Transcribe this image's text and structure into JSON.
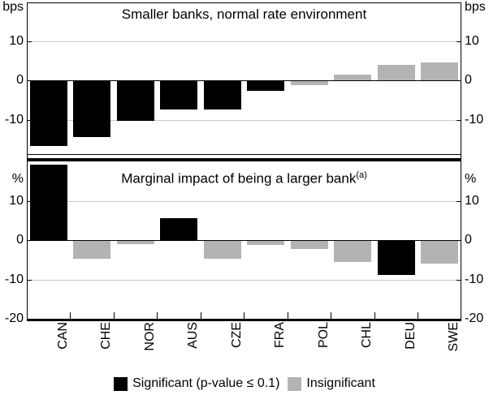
{
  "legend": {
    "significant_label": "Significant (p-value ≤ 0.1)",
    "insignificant_label": "Insignificant"
  },
  "colors": {
    "significant": "#000000",
    "insignificant": "#b3b3b3",
    "gridline": "#c9c9c9"
  },
  "chart_data": [
    {
      "type": "bar",
      "panel": "top",
      "title": "Smaller banks, normal rate environment",
      "unit": "bps",
      "ylim": [
        -20,
        20
      ],
      "yticks": [
        10,
        0,
        -10
      ],
      "grid": true,
      "categories": [
        "CAN",
        "CHE",
        "NOR",
        "AUS",
        "CZE",
        "FRA",
        "POL",
        "CHL",
        "DEU",
        "SWE"
      ],
      "values": [
        -16.4,
        -14.3,
        -10.2,
        -7.3,
        -7.2,
        -2.5,
        -1.0,
        1.5,
        4.0,
        4.5
      ],
      "significance": [
        "significant",
        "significant",
        "significant",
        "significant",
        "significant",
        "significant",
        "insignificant",
        "insignificant",
        "insignificant",
        "insignificant"
      ]
    },
    {
      "type": "bar",
      "panel": "bottom",
      "title": "Marginal impact of being a larger bank",
      "title_superscript": "(a)",
      "unit": "%",
      "ylim": [
        -20,
        20
      ],
      "yticks": [
        10,
        0,
        -10,
        -20
      ],
      "grid": true,
      "categories": [
        "CAN",
        "CHE",
        "NOR",
        "AUS",
        "CZE",
        "FRA",
        "POL",
        "CHL",
        "DEU",
        "SWE"
      ],
      "values": [
        19.2,
        -4.5,
        -0.8,
        5.5,
        -4.5,
        -1.0,
        -2.0,
        -5.3,
        -8.7,
        -5.8
      ],
      "significance": [
        "significant",
        "insignificant",
        "insignificant",
        "significant",
        "insignificant",
        "insignificant",
        "insignificant",
        "insignificant",
        "significant",
        "insignificant"
      ]
    }
  ]
}
